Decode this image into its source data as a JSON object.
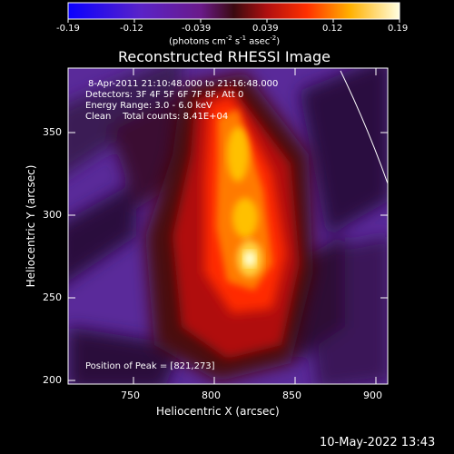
{
  "colorbar": {
    "tick_labels": [
      "-0.19",
      "-0.12",
      "-0.039",
      "0.039",
      "0.12",
      "0.19"
    ],
    "units_label": "(photons cm",
    "units_sup1": "-2",
    "units_mid": " s",
    "units_sup2": "-1",
    "units_end": " asec",
    "units_sup3": "-2",
    "units_close": ")"
  },
  "plot": {
    "title": "Reconstructed RHESSI Image",
    "xlabel": "Heliocentric X (arcsec)",
    "ylabel": "Heliocentric Y (arcsec)",
    "x_ticks": [
      "750",
      "800",
      "850",
      "900"
    ],
    "y_ticks": [
      "200",
      "250",
      "300",
      "350"
    ],
    "info_lines": [
      "8-Apr-2011 21:10:48.000 to 21:16:48.000",
      "Detectors: 3F 4F 5F 6F 7F 8F, Att 0",
      "Energy Range: 3.0 - 6.0 keV",
      "Clean    Total counts: 8.41E+04"
    ],
    "peak_label": "Position of Peak = [821,273]"
  },
  "timestamp": "10-May-2022 13:43"
}
